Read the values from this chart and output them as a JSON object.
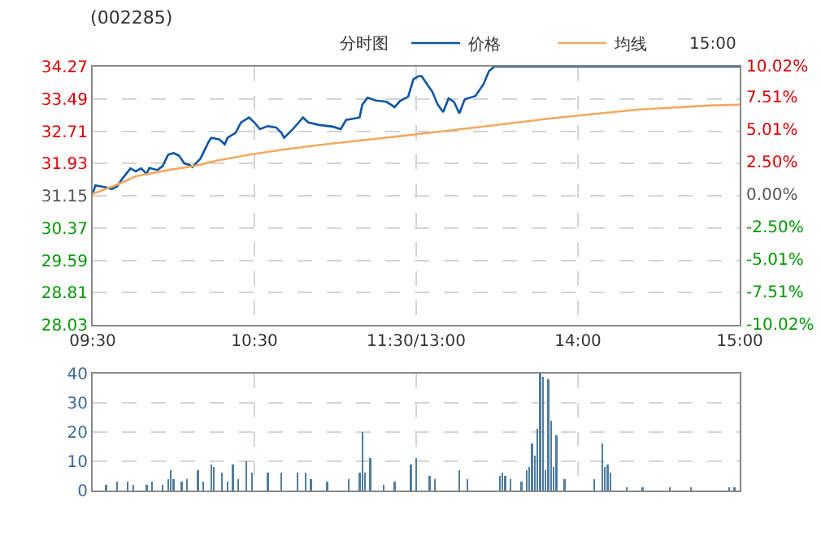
{
  "chart_data": [
    {
      "type": "line",
      "title": "(002285)",
      "subtitle": "分时图",
      "annotations": [
        "15:00"
      ],
      "legend": "top",
      "grid": true,
      "line_style": "solid",
      "marker": "none",
      "categories": [
        "09:30",
        null,
        null,
        null,
        null,
        null,
        null,
        null,
        null,
        null,
        null,
        null,
        null,
        null,
        null,
        null,
        null,
        null,
        null,
        null,
        null,
        null,
        null,
        null,
        null,
        null,
        null,
        null,
        null,
        null,
        null,
        null,
        null,
        null,
        null,
        null,
        null,
        null,
        null,
        null,
        null,
        null,
        null,
        null,
        null,
        null,
        null,
        null,
        null,
        null,
        null,
        null,
        null,
        null,
        null,
        null,
        null,
        null,
        null,
        null,
        "10:30",
        null,
        null,
        null,
        null,
        null,
        null,
        null,
        null,
        null,
        null,
        null,
        null,
        null,
        null,
        null,
        null,
        null,
        null,
        null,
        null,
        null,
        null,
        null,
        null,
        null,
        null,
        null,
        null,
        null,
        null,
        null,
        null,
        null,
        null,
        null,
        null,
        null,
        null,
        null,
        null,
        null,
        null,
        null,
        null,
        null,
        null,
        null,
        null,
        null,
        null,
        null,
        null,
        null,
        null,
        null,
        null,
        null,
        null,
        null,
        "11:30/13:00",
        null,
        null,
        null,
        null,
        null,
        null,
        null,
        null,
        null,
        null,
        null,
        null,
        null,
        null,
        null,
        null,
        null,
        null,
        null,
        null,
        null,
        null,
        null,
        null,
        null,
        null,
        null,
        null,
        null,
        null,
        null,
        null,
        null,
        null,
        null,
        null,
        null,
        null,
        null,
        null,
        null,
        null,
        null,
        null,
        null,
        null,
        null,
        null,
        null,
        null,
        null,
        null,
        null,
        null,
        null,
        null,
        null,
        null,
        null,
        "14:00",
        null,
        null,
        null,
        null,
        null,
        null,
        null,
        null,
        null,
        null,
        null,
        null,
        null,
        null,
        null,
        null,
        null,
        null,
        null,
        null,
        null,
        null,
        null,
        null,
        null,
        null,
        null,
        null,
        null,
        null,
        null,
        null,
        null,
        null,
        null,
        null,
        null,
        null,
        null,
        null,
        null,
        null,
        null,
        null,
        null,
        null,
        null,
        null,
        null,
        null,
        null,
        null,
        null,
        null,
        null,
        null,
        null,
        null,
        null,
        "15:00"
      ],
      "ylim": [
        28.03,
        34.27
      ],
      "yticks": [
        28.03,
        28.81,
        29.59,
        30.37,
        31.15,
        31.93,
        32.71,
        33.49,
        34.27
      ],
      "y2lim": [
        -10.02,
        10.02
      ],
      "y2ticks": [
        {
          "value": -10.02,
          "label": "-10.02%"
        },
        {
          "value": -7.51,
          "label": "-7.51%"
        },
        {
          "value": -5.01,
          "label": "-5.01%"
        },
        {
          "value": -2.5,
          "label": "-2.50%"
        },
        {
          "value": 0,
          "label": "0.00%"
        },
        {
          "value": 2.5,
          "label": "2.50%"
        },
        {
          "value": 5.01,
          "label": "5.01%"
        },
        {
          "value": 7.51,
          "label": "7.51%"
        },
        {
          "value": 10.02,
          "label": "10.02%"
        }
      ],
      "series": [
        {
          "name": "价格",
          "color": "#0b55a3",
          "values": [
            31.19,
            31.4,
            null,
            null,
            null,
            31.35,
            null,
            31.31,
            null,
            31.37,
            null,
            31.56,
            null,
            null,
            31.81,
            null,
            31.74,
            null,
            31.81,
            null,
            31.68,
            31.82,
            null,
            null,
            31.77,
            null,
            31.87,
            null,
            32.14,
            null,
            32.18,
            null,
            32.12,
            null,
            31.93,
            null,
            31.89,
            31.84,
            null,
            null,
            32.05,
            null,
            null,
            32.45,
            32.55,
            null,
            null,
            32.51,
            null,
            32.39,
            32.55,
            null,
            null,
            32.67,
            null,
            32.92,
            null,
            null,
            33.04,
            null,
            32.92,
            null,
            32.76,
            null,
            null,
            32.83,
            null,
            null,
            32.8,
            null,
            32.67,
            32.55,
            null,
            null,
            32.74,
            null,
            null,
            null,
            33.04,
            null,
            32.92,
            null,
            null,
            null,
            32.86,
            null,
            null,
            null,
            null,
            32.82,
            null,
            null,
            32.76,
            null,
            32.98,
            null,
            null,
            null,
            null,
            33.04,
            33.35,
            null,
            33.52,
            null,
            null,
            33.45,
            null,
            null,
            null,
            33.42,
            null,
            null,
            33.29,
            null,
            33.44,
            null,
            null,
            33.54,
            null,
            33.97,
            null,
            34.04,
            34.04,
            null,
            33.85,
            null,
            33.66,
            null,
            33.35,
            null,
            33.17,
            null,
            33.5,
            null,
            33.42,
            null,
            33.14,
            null,
            33.48,
            null,
            null,
            null,
            33.56,
            null,
            null,
            33.85,
            null,
            34.16,
            null,
            34.27,
            null,
            null,
            null,
            null,
            null,
            null,
            null,
            null,
            null,
            null,
            null,
            null,
            null,
            null,
            null,
            null,
            null,
            null,
            null,
            null,
            null,
            null,
            null,
            null,
            null,
            null,
            null,
            null,
            null,
            null,
            null,
            null,
            null,
            null,
            null,
            null,
            null,
            null,
            null,
            null,
            null,
            null,
            null,
            null,
            null,
            null,
            null,
            null,
            null,
            null,
            null,
            null,
            null,
            null,
            null,
            null,
            null,
            null,
            null,
            null,
            null,
            null,
            null,
            null,
            null,
            null,
            null,
            null,
            null,
            null,
            null,
            null,
            null,
            null,
            null,
            null,
            null,
            null,
            null,
            null,
            null,
            null,
            null,
            null,
            null,
            null,
            null,
            null,
            null,
            null,
            34.27
          ]
        },
        {
          "name": "均线",
          "color": "#f5a860",
          "values": [
            31.19,
            null,
            null,
            null,
            null,
            null,
            null,
            null,
            null,
            null,
            null,
            31.47,
            null,
            null,
            null,
            null,
            31.62,
            null,
            null,
            null,
            null,
            null,
            null,
            null,
            null,
            null,
            null,
            null,
            null,
            31.78,
            null,
            null,
            null,
            null,
            null,
            null,
            null,
            null,
            31.87,
            null,
            null,
            null,
            null,
            null,
            null,
            null,
            32,
            null,
            null,
            null,
            null,
            null,
            null,
            null,
            null,
            null,
            null,
            null,
            32.14,
            null,
            null,
            null,
            null,
            null,
            null,
            null,
            null,
            null,
            null,
            null,
            32.26,
            null,
            null,
            null,
            null,
            null,
            null,
            null,
            null,
            null,
            null,
            null,
            null,
            null,
            null,
            null,
            32.39,
            null,
            null,
            null,
            null,
            null,
            null,
            null,
            null,
            null,
            null,
            null,
            null,
            null,
            32.49,
            null,
            null,
            null,
            null,
            null,
            null,
            null,
            null,
            null,
            null,
            null,
            null,
            null,
            null,
            null,
            null,
            null,
            null,
            null,
            null,
            32.64,
            null,
            null,
            null,
            null,
            null,
            null,
            null,
            null,
            null,
            null,
            null,
            null,
            null,
            null,
            null,
            null,
            null,
            null,
            null,
            null,
            32.8,
            null,
            null,
            null,
            null,
            null,
            null,
            null,
            null,
            null,
            null,
            null,
            null,
            null,
            null,
            null,
            null,
            null,
            null,
            null,
            null,
            null,
            null,
            null,
            null,
            null,
            null,
            null,
            33.02,
            null,
            null,
            null,
            null,
            null,
            null,
            null,
            null,
            null,
            null,
            null,
            null,
            null,
            null,
            null,
            null,
            null,
            null,
            null,
            null,
            null,
            null,
            null,
            null,
            null,
            null,
            null,
            null,
            null,
            null,
            null,
            33.23,
            null,
            null,
            null,
            null,
            null,
            null,
            null,
            null,
            null,
            null,
            null,
            null,
            null,
            null,
            null,
            null,
            null,
            null,
            null,
            null,
            null,
            null,
            null,
            null,
            null,
            null,
            33.33,
            null,
            null,
            null,
            null,
            null,
            null,
            null,
            null,
            null,
            null,
            33.35
          ]
        }
      ]
    },
    {
      "type": "bar",
      "grid": true,
      "tick_labels": "y",
      "categories": [
        null,
        null,
        null,
        null,
        null,
        null,
        null,
        null,
        null,
        null,
        null,
        null,
        null,
        null,
        null,
        null,
        null,
        null,
        null,
        null,
        null,
        null,
        null,
        null,
        null,
        null,
        null,
        null,
        null,
        null,
        null,
        null,
        null,
        null,
        null,
        null,
        null,
        null,
        null,
        null,
        null,
        null,
        null,
        null,
        null,
        null,
        null,
        null,
        null,
        null,
        null,
        null,
        null,
        null,
        null,
        null,
        null,
        null,
        null,
        null,
        null,
        null,
        null,
        null,
        null,
        null,
        null,
        null,
        null,
        null,
        null,
        null,
        null,
        null,
        null,
        null,
        null,
        null,
        null,
        null,
        null,
        null,
        null,
        null,
        null,
        null,
        null,
        null,
        null,
        null,
        null,
        null,
        null,
        null,
        null,
        null,
        null,
        null,
        null,
        null,
        null,
        null,
        null,
        null,
        null,
        null,
        null,
        null,
        null,
        null,
        null,
        null,
        null,
        null,
        null,
        null,
        null,
        null,
        null,
        null,
        null,
        null,
        null,
        null,
        null,
        null,
        null,
        null,
        null,
        null,
        null,
        null,
        null,
        null,
        null,
        null,
        null,
        null,
        null,
        null,
        null,
        null,
        null,
        null,
        null,
        null,
        null,
        null,
        null,
        null,
        null,
        null,
        null,
        null,
        null,
        null,
        null,
        null,
        null,
        null,
        null,
        null,
        null,
        null,
        null,
        null,
        null,
        null,
        null,
        null,
        null,
        null,
        null,
        null,
        null,
        null,
        null,
        null,
        null,
        null,
        null,
        null,
        null,
        null,
        null,
        null,
        null,
        null,
        null,
        null,
        null,
        null,
        null,
        null,
        null,
        null,
        null,
        null,
        null,
        null,
        null,
        null,
        null,
        null,
        null,
        null,
        null,
        null,
        null,
        null,
        null,
        null,
        null,
        null,
        null,
        null,
        null,
        null,
        null,
        null,
        null,
        null,
        null,
        null,
        null,
        null,
        null,
        null,
        null,
        null,
        null,
        null,
        null,
        null,
        null,
        null,
        null,
        null,
        null,
        null,
        null
      ],
      "ylim": [
        0,
        40
      ],
      "yticks": [
        0,
        10,
        20,
        30,
        40
      ],
      "series": [
        {
          "color": "#4f7ca0",
          "values": [
            null,
            null,
            null,
            null,
            null,
            2,
            null,
            null,
            null,
            3,
            null,
            null,
            null,
            3,
            null,
            2,
            null,
            null,
            null,
            null,
            2,
            null,
            3,
            null,
            null,
            null,
            2,
            null,
            4,
            7,
            4,
            null,
            null,
            3,
            null,
            4,
            null,
            null,
            null,
            7,
            null,
            3,
            null,
            null,
            9,
            8,
            null,
            null,
            6,
            null,
            3,
            null,
            9,
            null,
            4,
            null,
            null,
            10,
            null,
            6,
            null,
            null,
            null,
            null,
            null,
            6,
            null,
            null,
            null,
            null,
            6,
            null,
            null,
            null,
            null,
            null,
            6,
            null,
            null,
            6,
            null,
            4,
            null,
            null,
            null,
            null,
            null,
            3,
            null,
            null,
            null,
            null,
            null,
            null,
            null,
            4,
            null,
            null,
            null,
            6,
            20,
            6,
            null,
            11,
            null,
            null,
            null,
            null,
            2,
            null,
            null,
            null,
            3,
            null,
            null,
            null,
            null,
            null,
            9,
            null,
            11,
            null,
            null,
            null,
            null,
            5,
            null,
            4,
            null,
            null,
            null,
            null,
            null,
            null,
            null,
            null,
            7,
            null,
            null,
            4,
            null,
            null,
            null,
            null,
            null,
            null,
            null,
            null,
            null,
            null,
            null,
            5,
            6,
            5,
            null,
            4,
            null,
            null,
            null,
            3,
            null,
            7,
            8,
            16,
            12,
            21,
            40,
            39,
            7,
            38,
            24,
            8,
            19,
            null,
            null,
            4,
            null,
            null,
            null,
            null,
            null,
            null,
            null,
            null,
            null,
            null,
            4,
            null,
            null,
            16,
            8,
            9,
            6,
            null,
            null,
            null,
            null,
            null,
            1,
            null,
            null,
            null,
            null,
            null,
            1,
            null,
            null,
            null,
            null,
            null,
            null,
            null,
            null,
            null,
            1,
            null,
            null,
            null,
            null,
            null,
            null,
            null,
            1,
            null,
            null,
            null,
            null,
            null,
            null,
            null,
            null,
            null,
            null,
            null,
            null,
            null,
            1,
            null,
            1,
            null,
            null
          ]
        }
      ]
    }
  ]
}
